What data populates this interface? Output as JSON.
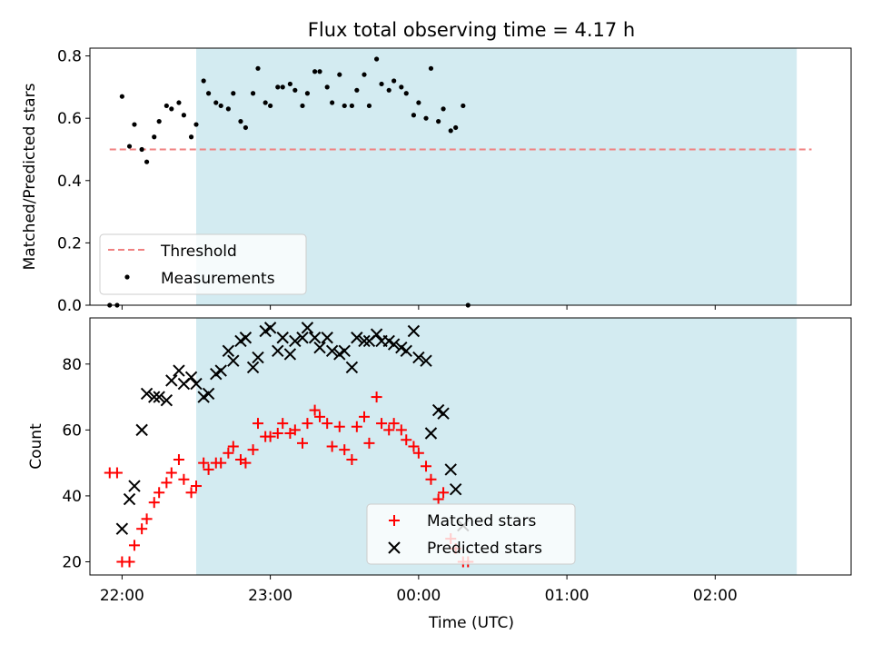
{
  "chart_data": [
    {
      "type": "scatter",
      "title": "Flux total observing time = 4.17 h",
      "xlabel": "",
      "ylabel": "Matched/Predicted stars",
      "xlim": [
        "21:47",
        "02:55"
      ],
      "ylim": [
        0,
        0.825
      ],
      "yticks": [
        "0.0",
        "0.2",
        "0.4",
        "0.6",
        "0.8"
      ],
      "observing_window": [
        "22:30",
        "02:33"
      ],
      "window_color": "#d3ebf1",
      "threshold": {
        "name": "Threshold",
        "value": 0.5,
        "range": [
          "21:55",
          "02:39"
        ],
        "color": "#f08080"
      },
      "series": [
        {
          "name": "Measurements",
          "color": "#000000",
          "points": [
            [
              "21:55",
              0.0
            ],
            [
              "21:58",
              0.0
            ],
            [
              "22:00",
              0.67
            ],
            [
              "22:03",
              0.51
            ],
            [
              "22:05",
              0.58
            ],
            [
              "22:08",
              0.5
            ],
            [
              "22:10",
              0.46
            ],
            [
              "22:13",
              0.54
            ],
            [
              "22:15",
              0.59
            ],
            [
              "22:18",
              0.64
            ],
            [
              "22:20",
              0.63
            ],
            [
              "22:23",
              0.65
            ],
            [
              "22:25",
              0.61
            ],
            [
              "22:28",
              0.54
            ],
            [
              "22:30",
              0.58
            ],
            [
              "22:33",
              0.72
            ],
            [
              "22:35",
              0.68
            ],
            [
              "22:38",
              0.65
            ],
            [
              "22:40",
              0.64
            ],
            [
              "22:43",
              0.63
            ],
            [
              "22:45",
              0.68
            ],
            [
              "22:48",
              0.59
            ],
            [
              "22:50",
              0.57
            ],
            [
              "22:53",
              0.68
            ],
            [
              "22:55",
              0.76
            ],
            [
              "22:58",
              0.65
            ],
            [
              "23:00",
              0.64
            ],
            [
              "23:03",
              0.7
            ],
            [
              "23:05",
              0.7
            ],
            [
              "23:08",
              0.71
            ],
            [
              "23:10",
              0.69
            ],
            [
              "23:13",
              0.64
            ],
            [
              "23:15",
              0.68
            ],
            [
              "23:18",
              0.75
            ],
            [
              "23:20",
              0.75
            ],
            [
              "23:23",
              0.7
            ],
            [
              "23:25",
              0.65
            ],
            [
              "23:28",
              0.74
            ],
            [
              "23:30",
              0.64
            ],
            [
              "23:33",
              0.64
            ],
            [
              "23:35",
              0.69
            ],
            [
              "23:38",
              0.74
            ],
            [
              "23:40",
              0.64
            ],
            [
              "23:43",
              0.79
            ],
            [
              "23:45",
              0.71
            ],
            [
              "23:48",
              0.69
            ],
            [
              "23:50",
              0.72
            ],
            [
              "23:53",
              0.7
            ],
            [
              "23:55",
              0.68
            ],
            [
              "23:58",
              0.61
            ],
            [
              "00:00",
              0.65
            ],
            [
              "00:03",
              0.6
            ],
            [
              "00:05",
              0.76
            ],
            [
              "00:08",
              0.59
            ],
            [
              "00:10",
              0.63
            ],
            [
              "00:13",
              0.56
            ],
            [
              "00:15",
              0.57
            ],
            [
              "00:18",
              0.64
            ],
            [
              "00:20",
              0.0
            ]
          ]
        }
      ],
      "legend": {
        "placement": "lower-left",
        "entries": [
          "Threshold",
          "Measurements"
        ]
      },
      "grid": false
    },
    {
      "type": "scatter",
      "xlabel": "Time (UTC)",
      "ylabel": "Count",
      "xlim": [
        "21:47",
        "02:55"
      ],
      "ylim": [
        16,
        94
      ],
      "xticks": [
        "22:00",
        "23:00",
        "00:00",
        "01:00",
        "02:00"
      ],
      "yticks": [
        "20",
        "40",
        "60",
        "80"
      ],
      "observing_window": [
        "22:30",
        "02:33"
      ],
      "series": [
        {
          "name": "Matched stars",
          "marker": "plus",
          "color": "#ff0000",
          "points": [
            [
              "21:55",
              47
            ],
            [
              "21:58",
              47
            ],
            [
              "22:00",
              20
            ],
            [
              "22:03",
              20
            ],
            [
              "22:05",
              25
            ],
            [
              "22:08",
              30
            ],
            [
              "22:10",
              33
            ],
            [
              "22:13",
              38
            ],
            [
              "22:15",
              41
            ],
            [
              "22:18",
              44
            ],
            [
              "22:20",
              47
            ],
            [
              "22:23",
              51
            ],
            [
              "22:25",
              45
            ],
            [
              "22:28",
              41
            ],
            [
              "22:30",
              43
            ],
            [
              "22:33",
              50
            ],
            [
              "22:35",
              48
            ],
            [
              "22:38",
              50
            ],
            [
              "22:40",
              50
            ],
            [
              "22:43",
              53
            ],
            [
              "22:45",
              55
            ],
            [
              "22:48",
              51
            ],
            [
              "22:50",
              50
            ],
            [
              "22:53",
              54
            ],
            [
              "22:55",
              62
            ],
            [
              "22:58",
              58
            ],
            [
              "23:00",
              58
            ],
            [
              "23:03",
              59
            ],
            [
              "23:05",
              62
            ],
            [
              "23:08",
              59
            ],
            [
              "23:10",
              60
            ],
            [
              "23:13",
              56
            ],
            [
              "23:15",
              62
            ],
            [
              "23:18",
              66
            ],
            [
              "23:20",
              64
            ],
            [
              "23:23",
              62
            ],
            [
              "23:25",
              55
            ],
            [
              "23:28",
              61
            ],
            [
              "23:30",
              54
            ],
            [
              "23:33",
              51
            ],
            [
              "23:35",
              61
            ],
            [
              "23:38",
              64
            ],
            [
              "23:40",
              56
            ],
            [
              "23:43",
              70
            ],
            [
              "23:45",
              62
            ],
            [
              "23:48",
              60
            ],
            [
              "23:50",
              62
            ],
            [
              "23:53",
              60
            ],
            [
              "23:55",
              57
            ],
            [
              "23:58",
              55
            ],
            [
              "00:00",
              53
            ],
            [
              "00:03",
              49
            ],
            [
              "00:05",
              45
            ],
            [
              "00:08",
              39
            ],
            [
              "00:10",
              41
            ],
            [
              "00:13",
              27
            ],
            [
              "00:15",
              24
            ],
            [
              "00:18",
              20
            ],
            [
              "00:20",
              20
            ]
          ]
        },
        {
          "name": "Predicted stars",
          "marker": "x",
          "color": "#000000",
          "points": [
            [
              "22:00",
              30
            ],
            [
              "22:03",
              39
            ],
            [
              "22:05",
              43
            ],
            [
              "22:08",
              60
            ],
            [
              "22:10",
              71
            ],
            [
              "22:13",
              70
            ],
            [
              "22:15",
              70
            ],
            [
              "22:18",
              69
            ],
            [
              "22:20",
              75
            ],
            [
              "22:23",
              78
            ],
            [
              "22:25",
              74
            ],
            [
              "22:28",
              76
            ],
            [
              "22:30",
              74
            ],
            [
              "22:33",
              70
            ],
            [
              "22:35",
              71
            ],
            [
              "22:38",
              77
            ],
            [
              "22:40",
              78
            ],
            [
              "22:43",
              84
            ],
            [
              "22:45",
              81
            ],
            [
              "22:48",
              87
            ],
            [
              "22:50",
              88
            ],
            [
              "22:53",
              79
            ],
            [
              "22:55",
              82
            ],
            [
              "22:58",
              90
            ],
            [
              "23:00",
              91
            ],
            [
              "23:03",
              84
            ],
            [
              "23:05",
              88
            ],
            [
              "23:08",
              83
            ],
            [
              "23:10",
              87
            ],
            [
              "23:13",
              88
            ],
            [
              "23:15",
              91
            ],
            [
              "23:18",
              88
            ],
            [
              "23:20",
              85
            ],
            [
              "23:23",
              88
            ],
            [
              "23:25",
              84
            ],
            [
              "23:28",
              83
            ],
            [
              "23:30",
              84
            ],
            [
              "23:33",
              79
            ],
            [
              "23:35",
              88
            ],
            [
              "23:38",
              87
            ],
            [
              "23:40",
              87
            ],
            [
              "23:43",
              89
            ],
            [
              "23:45",
              87
            ],
            [
              "23:48",
              87
            ],
            [
              "23:50",
              86
            ],
            [
              "23:53",
              85
            ],
            [
              "23:55",
              84
            ],
            [
              "23:58",
              90
            ],
            [
              "00:00",
              82
            ],
            [
              "00:03",
              81
            ],
            [
              "00:05",
              59
            ],
            [
              "00:08",
              66
            ],
            [
              "00:10",
              65
            ],
            [
              "00:13",
              48
            ],
            [
              "00:15",
              42
            ],
            [
              "00:18",
              31
            ]
          ]
        }
      ],
      "legend": {
        "placement": "lower-center",
        "entries": [
          "Matched stars",
          "Predicted stars"
        ]
      },
      "grid": false
    }
  ]
}
